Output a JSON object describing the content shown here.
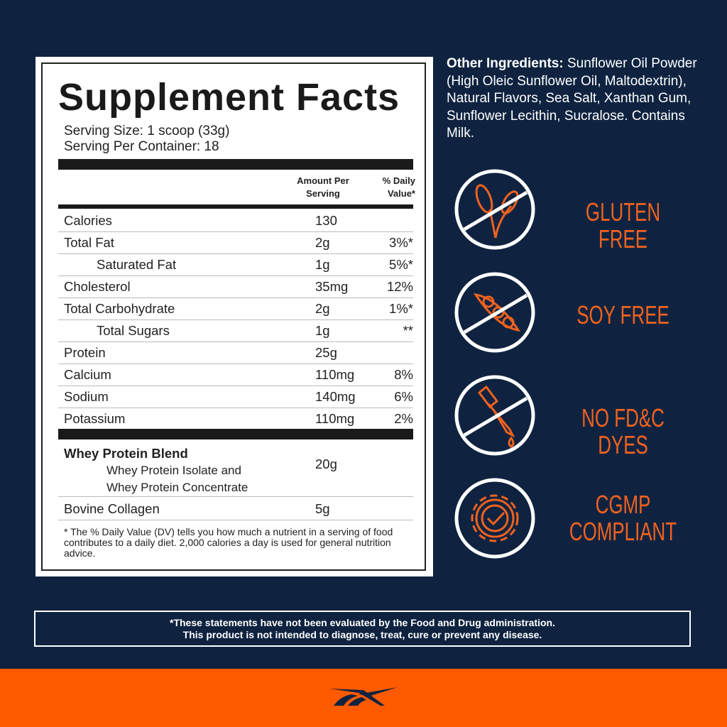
{
  "facts": {
    "title": "Supplement Facts",
    "serving_size": "Serving Size: 1 scoop (33g)",
    "servings_per_container": "Serving Per Container: 18",
    "col_amount": "Amount Per Serving",
    "col_dv": "% Daily Value*",
    "rows": [
      {
        "label": "Calories",
        "amount": "130",
        "dv": ""
      },
      {
        "label": "Total Fat",
        "amount": "2g",
        "dv": "3%*"
      },
      {
        "label": "Saturated Fat",
        "amount": "1g",
        "dv": "5%*",
        "indent": true
      },
      {
        "label": "Cholesterol",
        "amount": "35mg",
        "dv": "12%"
      },
      {
        "label": "Total Carbohydrate",
        "amount": "2g",
        "dv": "1%*"
      },
      {
        "label": "Total Sugars",
        "amount": "1g",
        "dv": "**",
        "indent": true
      },
      {
        "label": "Protein",
        "amount": "25g",
        "dv": ""
      },
      {
        "label": "Calcium",
        "amount": "110mg",
        "dv": "8%"
      },
      {
        "label": "Sodium",
        "amount": "140mg",
        "dv": "6%"
      },
      {
        "label": "Potassium",
        "amount": "110mg",
        "dv": "2%"
      }
    ],
    "blend": {
      "label": "Whey Protein Blend",
      "sub1": "Whey Protein Isolate and",
      "sub2": "Whey Protein Concentrate",
      "amount": "20g"
    },
    "collagen": {
      "label": "Bovine Collagen",
      "amount": "5g"
    },
    "footnote": "* The % Daily Value (DV) tells you how much a nutrient in a serving of food contributes to a daily diet. 2,000 calories a day is used for general nutrition advice."
  },
  "ingredients": {
    "heading": "Other Ingredients:",
    "text": " Sunflower Oil Powder (High Oleic Sunflower Oil, Maltodextrin), Natural Flavors, Sea Salt, Xanthan Gum, Sunflower Lecithin, Sucralose. Contains Milk."
  },
  "claims": [
    {
      "icon": "no-wheat-icon",
      "label": "GLUTEN FREE"
    },
    {
      "icon": "no-soy-icon",
      "label": "SOY FREE"
    },
    {
      "icon": "no-dropper-icon",
      "label": "NO FD&C DYES"
    },
    {
      "icon": "gear-check-icon",
      "label": "CGMP COMPLIANT"
    }
  ],
  "disclaimer": {
    "line1": "*These statements have not been evaluated by the Food and Drug administration.",
    "line2": "This product is not intended to diagnose, treat, cure or prevent any disease."
  },
  "colors": {
    "navy": "#0f2340",
    "orange": "#ff5a00",
    "accent_text": "#f0621f"
  },
  "brand": {
    "logo": "reebok-delta-logo"
  }
}
